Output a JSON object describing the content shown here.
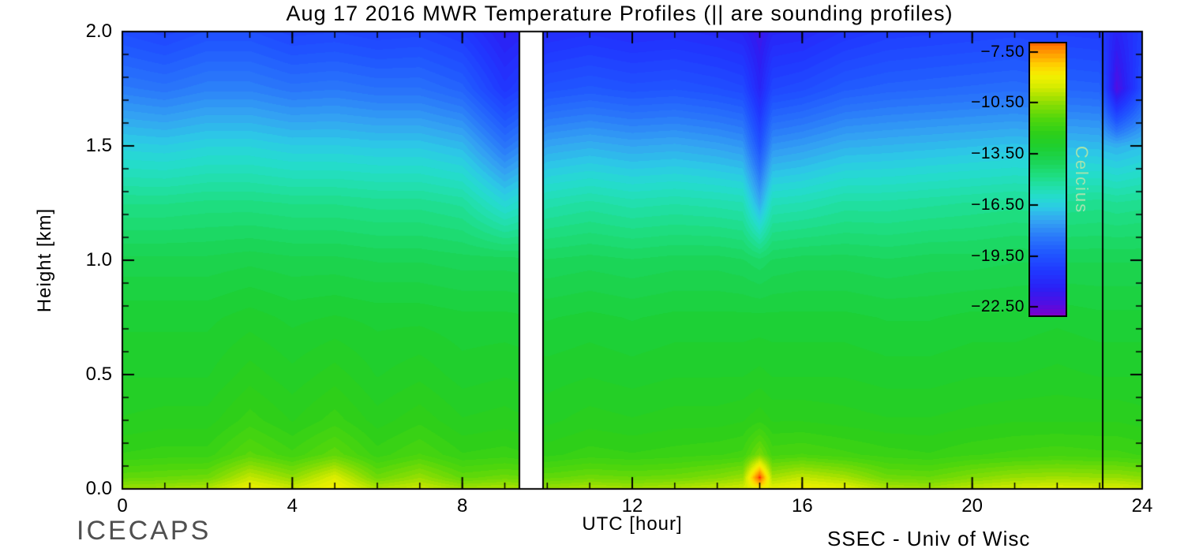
{
  "footer": {
    "left": "ICECAPS",
    "right": "SSEC - Univ of Wisc"
  },
  "chart_data": {
    "type": "heatmap",
    "title": "Aug 17 2016 MWR Temperature Profiles (|| are sounding profiles)",
    "xlabel": "UTC [hour]",
    "ylabel": "Height [km]",
    "xlim": [
      0,
      24
    ],
    "ylim": [
      0.0,
      2.0
    ],
    "x_major_ticks": [
      {
        "v": 0,
        "label": "0"
      },
      {
        "v": 4,
        "label": "4"
      },
      {
        "v": 8,
        "label": "8"
      },
      {
        "v": 12,
        "label": "12"
      },
      {
        "v": 16,
        "label": "16"
      },
      {
        "v": 20,
        "label": "20"
      },
      {
        "v": 24,
        "label": "24"
      }
    ],
    "x_minor_step": 1,
    "y_major_ticks": [
      {
        "v": 0.0,
        "label": "0.0"
      },
      {
        "v": 0.5,
        "label": "0.5"
      },
      {
        "v": 1.0,
        "label": "1.0"
      },
      {
        "v": 1.5,
        "label": "1.5"
      },
      {
        "v": 2.0,
        "label": "2.0"
      }
    ],
    "y_minor_step": 0.1,
    "x_hours": [
      0,
      1,
      2,
      3,
      4,
      5,
      6,
      7,
      8,
      9,
      10,
      11,
      12,
      13,
      14,
      14.6,
      15,
      15.3,
      16,
      17,
      18,
      19,
      20,
      21,
      22,
      23,
      23.4,
      24
    ],
    "y_heights_km": [
      0.0,
      0.05,
      0.15,
      0.3,
      0.5,
      0.75,
      1.0,
      1.25,
      1.5,
      1.75,
      2.0
    ],
    "temps_c_rows_by_height": [
      [
        -10.3,
        -10.2,
        -10.0,
        -9.0,
        -9.6,
        -8.8,
        -10.0,
        -9.6,
        -10.2,
        -10.0,
        -10.3,
        -10.0,
        -10.2,
        -10.0,
        -9.7,
        -9.5,
        -9.0,
        -9.2,
        -8.9,
        -9.2,
        -10.0,
        -10.2,
        -9.8,
        -9.5,
        -9.3,
        -9.4,
        -9.4,
        -9.6
      ],
      [
        -11.2,
        -11.1,
        -11.0,
        -9.8,
        -10.5,
        -9.4,
        -11.0,
        -10.4,
        -11.2,
        -11.0,
        -11.2,
        -11.0,
        -11.1,
        -11.0,
        -10.7,
        -10.4,
        -6.6,
        -10.2,
        -9.8,
        -10.2,
        -11.0,
        -11.1,
        -10.7,
        -10.4,
        -10.3,
        -10.4,
        -10.4,
        -10.6
      ],
      [
        -12.1,
        -12.0,
        -12.0,
        -11.3,
        -11.8,
        -11.2,
        -12.0,
        -11.6,
        -12.1,
        -12.0,
        -12.2,
        -12.0,
        -12.1,
        -12.0,
        -11.9,
        -11.8,
        -10.8,
        -11.7,
        -11.6,
        -11.8,
        -12.0,
        -12.1,
        -11.9,
        -11.8,
        -11.7,
        -11.8,
        -11.8,
        -11.9
      ],
      [
        -12.6,
        -12.5,
        -12.5,
        -12.0,
        -12.4,
        -12.0,
        -12.5,
        -12.2,
        -12.6,
        -12.5,
        -12.7,
        -12.5,
        -12.6,
        -12.5,
        -12.5,
        -12.4,
        -12.2,
        -12.4,
        -12.4,
        -12.5,
        -12.6,
        -12.6,
        -12.5,
        -12.4,
        -12.4,
        -12.4,
        -12.4,
        -12.5
      ],
      [
        -12.9,
        -12.9,
        -12.9,
        -12.5,
        -12.8,
        -12.5,
        -12.9,
        -12.7,
        -13.0,
        -12.9,
        -13.0,
        -12.9,
        -13.0,
        -12.9,
        -12.9,
        -12.9,
        -12.8,
        -12.9,
        -12.9,
        -12.9,
        -13.0,
        -13.0,
        -12.9,
        -12.9,
        -12.8,
        -12.9,
        -12.9,
        -12.9
      ],
      [
        -13.2,
        -13.2,
        -13.2,
        -13.0,
        -13.2,
        -13.1,
        -13.2,
        -13.2,
        -13.3,
        -13.3,
        -13.4,
        -13.3,
        -13.4,
        -13.3,
        -13.3,
        -13.3,
        -13.3,
        -13.3,
        -13.3,
        -13.3,
        -13.4,
        -13.4,
        -13.3,
        -13.3,
        -13.2,
        -13.3,
        -13.3,
        -13.3
      ],
      [
        -13.8,
        -13.8,
        -13.8,
        -13.7,
        -13.8,
        -13.8,
        -13.9,
        -13.9,
        -14.0,
        -14.0,
        -14.1,
        -14.0,
        -14.1,
        -14.0,
        -14.0,
        -14.1,
        -14.3,
        -14.1,
        -14.0,
        -14.0,
        -14.1,
        -14.0,
        -14.0,
        -13.9,
        -13.9,
        -13.9,
        -13.9,
        -13.9
      ],
      [
        -14.9,
        -14.9,
        -14.8,
        -14.8,
        -14.9,
        -14.9,
        -15.0,
        -15.0,
        -15.2,
        -16.3,
        -15.5,
        -15.3,
        -15.5,
        -15.4,
        -15.5,
        -15.6,
        -17.3,
        -15.7,
        -15.6,
        -15.3,
        -15.3,
        -15.2,
        -15.1,
        -15.0,
        -15.1,
        -15.0,
        -15.1,
        -15.0
      ],
      [
        -16.5,
        -16.6,
        -16.4,
        -16.4,
        -16.6,
        -16.6,
        -16.7,
        -16.7,
        -17.0,
        -18.5,
        -17.4,
        -17.2,
        -17.4,
        -17.3,
        -17.5,
        -17.7,
        -19.5,
        -17.8,
        -17.6,
        -17.2,
        -17.1,
        -17.0,
        -16.9,
        -16.8,
        -16.9,
        -17.0,
        -17.2,
        -16.9
      ],
      [
        -18.3,
        -18.5,
        -18.2,
        -18.2,
        -18.5,
        -18.4,
        -18.6,
        -18.6,
        -19.0,
        -20.5,
        -19.5,
        -19.3,
        -19.5,
        -19.4,
        -19.6,
        -19.8,
        -21.2,
        -19.9,
        -19.7,
        -19.2,
        -19.0,
        -18.9,
        -18.8,
        -18.7,
        -18.9,
        -19.0,
        -22.3,
        -19.6
      ],
      [
        -19.7,
        -20.0,
        -19.6,
        -19.6,
        -20.0,
        -19.9,
        -20.1,
        -20.0,
        -20.4,
        -21.5,
        -20.9,
        -20.7,
        -20.9,
        -20.8,
        -21.0,
        -21.2,
        -21.9,
        -21.2,
        -21.1,
        -20.6,
        -20.3,
        -20.2,
        -20.1,
        -20.0,
        -20.2,
        -20.3,
        -21.3,
        -20.2
      ]
    ],
    "quantize_step_c": 0.25,
    "sounding_lines_utc": [
      9.33,
      9.89,
      23.05
    ],
    "data_gap_utc": [
      9.33,
      9.89
    ],
    "colormap": [
      {
        "t": -23.0,
        "c": "#7a00cc"
      },
      {
        "t": -22.2,
        "c": "#4b10e6"
      },
      {
        "t": -21.4,
        "c": "#2a20f5"
      },
      {
        "t": -20.4,
        "c": "#2038ff"
      },
      {
        "t": -19.4,
        "c": "#2055ff"
      },
      {
        "t": -18.4,
        "c": "#2a78fa"
      },
      {
        "t": -17.4,
        "c": "#34a6f2"
      },
      {
        "t": -16.7,
        "c": "#2cc8e6"
      },
      {
        "t": -16.1,
        "c": "#25dcd0"
      },
      {
        "t": -15.4,
        "c": "#21dfa8"
      },
      {
        "t": -14.7,
        "c": "#1edd7c"
      },
      {
        "t": -13.9,
        "c": "#1bd452"
      },
      {
        "t": -13.1,
        "c": "#1ecf30"
      },
      {
        "t": -12.3,
        "c": "#2ccf1a"
      },
      {
        "t": -11.5,
        "c": "#4dd60d"
      },
      {
        "t": -10.7,
        "c": "#80dc04"
      },
      {
        "t": -10.1,
        "c": "#aee300"
      },
      {
        "t": -9.5,
        "c": "#d8ec00"
      },
      {
        "t": -8.9,
        "c": "#f4f000"
      },
      {
        "t": -8.3,
        "c": "#ffd200"
      },
      {
        "t": -7.7,
        "c": "#ffa300"
      },
      {
        "t": -7.1,
        "c": "#ff7600"
      },
      {
        "t": -6.7,
        "c": "#ff3800"
      },
      {
        "t": -6.3,
        "c": "#e60000"
      }
    ],
    "colorbar": {
      "label": "Celcius",
      "label_color": "#a2e3ae",
      "range_c": [
        -23.0,
        -7.0
      ],
      "ticks": [
        {
          "v": -7.5,
          "label": "−7.50"
        },
        {
          "v": -10.5,
          "label": "−10.50"
        },
        {
          "v": -13.5,
          "label": "−13.50"
        },
        {
          "v": -16.5,
          "label": "−16.50"
        },
        {
          "v": -19.5,
          "label": "−19.50"
        },
        {
          "v": -22.5,
          "label": "−22.50"
        }
      ]
    }
  }
}
